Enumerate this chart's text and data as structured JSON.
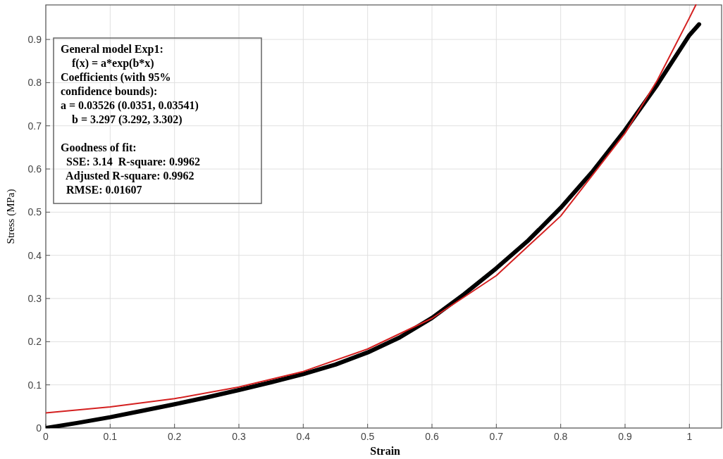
{
  "chart_data": {
    "type": "line",
    "xlabel": "Strain",
    "ylabel": "Stress (MPa)",
    "xlim": [
      0,
      1.05
    ],
    "ylim": [
      0,
      0.98
    ],
    "xticks": [
      0,
      0.1,
      0.2,
      0.3,
      0.4,
      0.5,
      0.6,
      0.7,
      0.8,
      0.9,
      1
    ],
    "yticks": [
      0,
      0.1,
      0.2,
      0.3,
      0.4,
      0.5,
      0.6,
      0.7,
      0.8,
      0.9
    ],
    "grid": true,
    "series": [
      {
        "color": "#000000",
        "x": [
          0,
          0.05,
          0.1,
          0.15,
          0.2,
          0.25,
          0.3,
          0.35,
          0.4,
          0.45,
          0.5,
          0.55,
          0.6,
          0.65,
          0.7,
          0.75,
          0.8,
          0.85,
          0.9,
          0.95,
          1.0,
          1.015
        ],
        "values": [
          0,
          0.012,
          0.025,
          0.04,
          0.055,
          0.071,
          0.088,
          0.106,
          0.125,
          0.147,
          0.175,
          0.21,
          0.255,
          0.31,
          0.37,
          0.435,
          0.51,
          0.595,
          0.69,
          0.795,
          0.91,
          0.935
        ]
      },
      {
        "color": "#d42020",
        "x": [
          0,
          0.1,
          0.2,
          0.3,
          0.4,
          0.5,
          0.6,
          0.7,
          0.8,
          0.9,
          0.95,
          1.0,
          1.01
        ],
        "values": [
          0.035,
          0.049,
          0.068,
          0.095,
          0.131,
          0.183,
          0.254,
          0.353,
          0.491,
          0.683,
          0.805,
          0.95,
          0.98
        ]
      }
    ],
    "annotations": [
      "General model Exp1:",
      "    f(x) = a*exp(b*x)",
      "Coefficients (with 95%",
      "confidence bounds):",
      "a = 0.03526 (0.0351, 0.03541)",
      "    b = 3.297 (3.292, 3.302)",
      "Goodness of fit:",
      "  SSE: 3.14  R-square: 0.9962",
      "  Adjusted R-square: 0.9962",
      "  RMSE: 0.01607"
    ]
  }
}
